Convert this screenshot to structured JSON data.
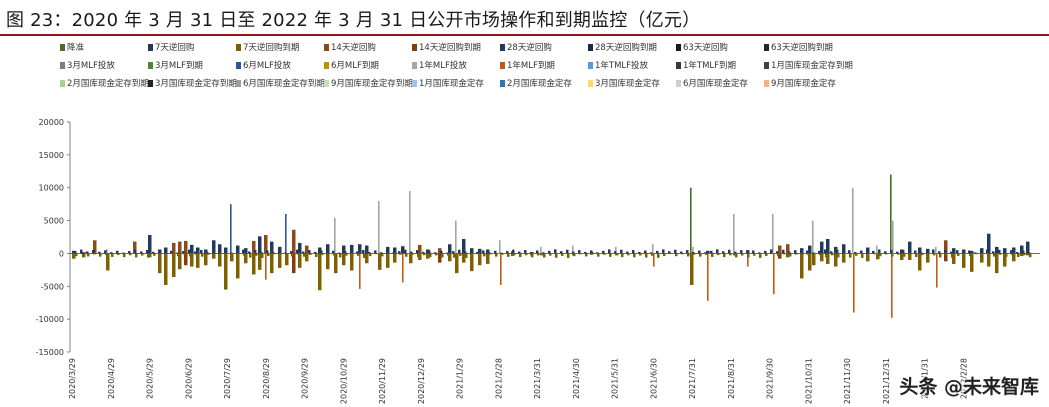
{
  "title": "图 23：2020 年 3 月 31 日至 2022 年 3 月 31 日公开市场操作和到期监控（亿元）",
  "watermark": "头条 @未来智库",
  "chart_data": {
    "type": "bar",
    "stacked": true,
    "ylim": [
      -15000,
      20000
    ],
    "yticks": [
      20000,
      15000,
      10000,
      5000,
      0,
      -5000,
      -10000,
      -15000
    ],
    "xticks": [
      "2020/3/29",
      "2020/4/29",
      "2020/5/29",
      "2020/6/29",
      "2020/7/29",
      "2020/8/29",
      "2020/9/29",
      "2020/10/29",
      "2020/11/29",
      "2020/12/29",
      "2021/1/29",
      "2021/2/28",
      "2021/3/31",
      "2021/4/30",
      "2021/5/31",
      "2021/6/30",
      "2021/7/31",
      "2021/8/31",
      "2021/9/30",
      "2021/10/31",
      "2021/11/30",
      "2021/12/31",
      "2022/1/31",
      "2022/2/28"
    ],
    "legend_position": "top",
    "grid": false,
    "series": [
      {
        "name": "降准",
        "color": "#4a6b2a"
      },
      {
        "name": "7天逆回购",
        "color": "#1f3864"
      },
      {
        "name": "7天逆回购到期",
        "color": "#7f6000"
      },
      {
        "name": "14天逆回购",
        "color": "#8a4a1a"
      },
      {
        "name": "14天逆回购到期",
        "color": "#843c0c"
      },
      {
        "name": "28天逆回购",
        "color": "#203864"
      },
      {
        "name": "28天逆回购到期",
        "color": "#1b2a44"
      },
      {
        "name": "63天逆回购",
        "color": "#1a1a1a"
      },
      {
        "name": "63天逆回购到期",
        "color": "#262626"
      },
      {
        "name": "3月MLF投放",
        "color": "#7f7f7f"
      },
      {
        "name": "3月MLF到期",
        "color": "#548235"
      },
      {
        "name": "6月MLF投放",
        "color": "#2f5597"
      },
      {
        "name": "6月MLF到期",
        "color": "#bf9000"
      },
      {
        "name": "1年MLF投放",
        "color": "#a5a5a5"
      },
      {
        "name": "1年MLF到期",
        "color": "#c55a11"
      },
      {
        "name": "1年TMLF投放",
        "color": "#5b9bd5"
      },
      {
        "name": "1年TMLF到期",
        "color": "#3a3a3a"
      },
      {
        "name": "1月国库现金定存到期",
        "color": "#404040"
      },
      {
        "name": "2月国库现金定存到期",
        "color": "#a9d18e"
      },
      {
        "name": "3月国库现金定存到期",
        "color": "#222222"
      },
      {
        "name": "6月国库现金定存到期",
        "color": "#9e9e9e"
      },
      {
        "name": "9月国库现金定存到期",
        "color": "#c5e0b4"
      },
      {
        "name": "1月国库现金定存",
        "color": "#9dc3e6"
      },
      {
        "name": "2月国库现金定存",
        "color": "#2e75b6"
      },
      {
        "name": "3月国库现金定存",
        "color": "#ffd966"
      },
      {
        "name": "6月国库现金定存",
        "color": "#d0cece"
      },
      {
        "name": "9月国库现金定存",
        "color": "#f4b183"
      }
    ]
  }
}
